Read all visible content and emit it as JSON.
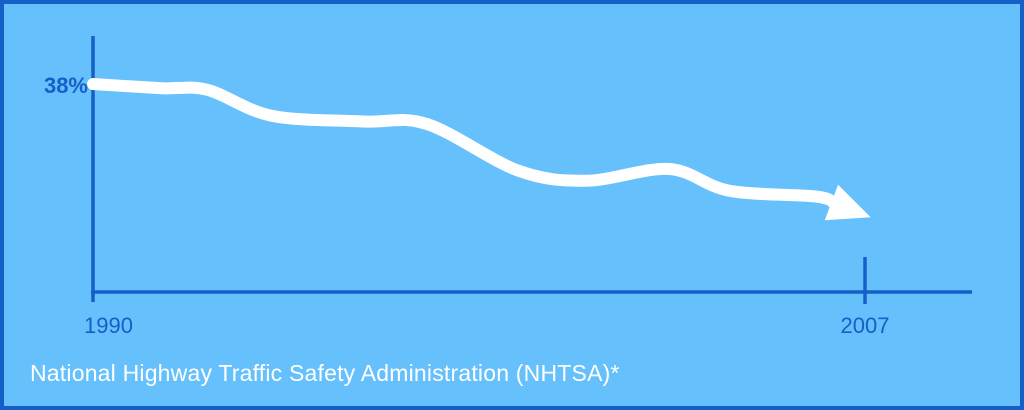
{
  "chart_data": {
    "type": "line",
    "title": "",
    "xlabel": "",
    "ylabel": "",
    "x_tick_labels": {
      "start": "1990",
      "end": "2007"
    },
    "y_tick_labels": {
      "start": "38%"
    },
    "xlim": [
      1990,
      2008.8
    ],
    "ylim": [
      14,
      38
    ],
    "x": [
      1990,
      1991.5,
      1992.5,
      1993.9,
      1995.9,
      1997.3,
      1999.3,
      2000.8,
      2002.6,
      2003.9,
      2005.8,
      2007
    ],
    "values": [
      38,
      37.5,
      37.3,
      34.2,
      33.5,
      33.2,
      27.6,
      26.4,
      27.8,
      25.2,
      24.5,
      22
    ],
    "ends_with_arrow": true,
    "grid": false,
    "colors": {
      "background": "#66c0fb",
      "border": "#1560c8",
      "axis": "#1560c8",
      "line": "#ffffff",
      "tick_label": "#1560c8",
      "source_text": "#ffffff"
    }
  },
  "source_note": "National Highway Traffic Safety Administration (NHTSA)*"
}
